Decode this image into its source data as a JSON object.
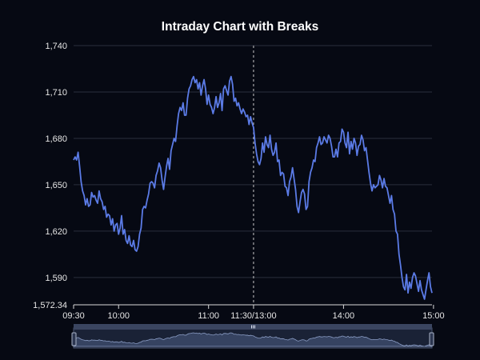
{
  "chart_data": {
    "type": "line",
    "title": "Intraday Chart with Breaks",
    "xlabel": "",
    "ylabel": "",
    "ylim": [
      1572.34,
      1740
    ],
    "yticks": [
      {
        "value": 1572.34,
        "label": "1,572.34"
      },
      {
        "value": 1590,
        "label": "1,590"
      },
      {
        "value": 1620,
        "label": "1,620"
      },
      {
        "value": 1650,
        "label": "1,650"
      },
      {
        "value": 1680,
        "label": "1,680"
      },
      {
        "value": 1710,
        "label": "1,710"
      },
      {
        "value": 1740,
        "label": "1,740"
      }
    ],
    "xticks": [
      {
        "index": 0,
        "label": "09:30"
      },
      {
        "index": 30,
        "label": "10:00"
      },
      {
        "index": 90,
        "label": "11:00"
      },
      {
        "index": 120,
        "label": "11:30/13:00"
      },
      {
        "index": 180,
        "label": "14:00"
      },
      {
        "index": 240,
        "label": "15:00"
      }
    ],
    "break_index": 120,
    "grid": true,
    "line_color": "#5b7be6",
    "series": [
      {
        "values": [
          1666,
          1668,
          1666,
          1671,
          1662,
          1652,
          1646,
          1643,
          1637,
          1641,
          1636,
          1637,
          1645,
          1642,
          1643,
          1640,
          1638,
          1646,
          1641,
          1639,
          1634,
          1636,
          1629,
          1631,
          1630,
          1624,
          1628,
          1620,
          1624,
          1625,
          1618,
          1622,
          1630,
          1618,
          1621,
          1614,
          1612,
          1617,
          1611,
          1610,
          1614,
          1608,
          1607,
          1610,
          1618,
          1622,
          1634,
          1636,
          1635,
          1640,
          1644,
          1651,
          1652,
          1651,
          1648,
          1656,
          1659,
          1664,
          1661,
          1653,
          1647,
          1655,
          1662,
          1667,
          1660,
          1672,
          1676,
          1680,
          1678,
          1688,
          1696,
          1700,
          1698,
          1703,
          1695,
          1695,
          1706,
          1712,
          1714,
          1718,
          1720,
          1716,
          1718,
          1712,
          1716,
          1708,
          1714,
          1718,
          1712,
          1702,
          1708,
          1702,
          1700,
          1696,
          1700,
          1707,
          1700,
          1703,
          1709,
          1698,
          1712,
          1714,
          1711,
          1708,
          1717,
          1720,
          1715,
          1704,
          1706,
          1701,
          1703,
          1699,
          1696,
          1699,
          1697,
          1694,
          1695,
          1689,
          1694,
          1690,
          1687,
          1677,
          1670,
          1665,
          1663,
          1667,
          1677,
          1671,
          1681,
          1676,
          1674,
          1682,
          1673,
          1669,
          1671,
          1677,
          1665,
          1666,
          1656,
          1658,
          1657,
          1649,
          1648,
          1643,
          1652,
          1655,
          1661,
          1654,
          1647,
          1636,
          1632,
          1639,
          1645,
          1647,
          1644,
          1634,
          1636,
          1652,
          1658,
          1661,
          1666,
          1665,
          1674,
          1677,
          1681,
          1676,
          1677,
          1681,
          1679,
          1677,
          1682,
          1680,
          1675,
          1668,
          1668,
          1673,
          1668,
          1677,
          1678,
          1686,
          1684,
          1677,
          1674,
          1684,
          1670,
          1678,
          1673,
          1680,
          1677,
          1669,
          1675,
          1676,
          1682,
          1679,
          1672,
          1674,
          1666,
          1658,
          1651,
          1646,
          1650,
          1648,
          1649,
          1650,
          1656,
          1653,
          1648,
          1654,
          1649,
          1648,
          1643,
          1638,
          1643,
          1634,
          1631,
          1620,
          1618,
          1605,
          1598,
          1590,
          1584,
          1582,
          1592,
          1580,
          1587,
          1583,
          1590,
          1593,
          1591,
          1586,
          1581,
          1588,
          1582,
          1579,
          1576,
          1582,
          1588,
          1593,
          1584,
          1580
        ]
      }
    ]
  }
}
